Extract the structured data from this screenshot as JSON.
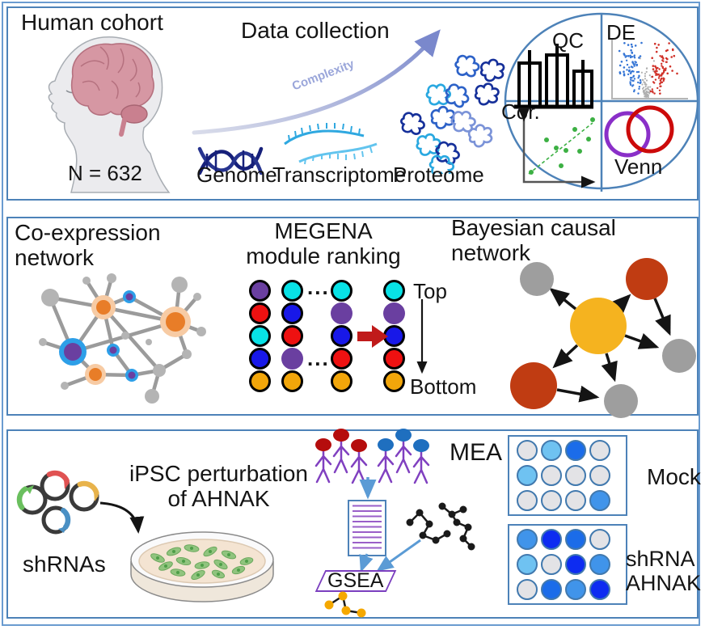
{
  "figure": {
    "panel1": {
      "cohort_title": "Human cohort",
      "n_label": "N = 632",
      "collection_title": "Data collection",
      "complexity_label": "Complexity",
      "omics": [
        "Genome",
        "Transcriptome",
        "Proteome"
      ],
      "analyses": {
        "qc": "QC",
        "de": "DE",
        "cor": "Cor.",
        "venn": "Venn"
      }
    },
    "panel2": {
      "coexpression_title": "Co-expression\nnetwork",
      "megena_title": "MEGENA\nmodule ranking",
      "ellipsis": "...",
      "top_label": "Top",
      "bottom_label": "Bottom",
      "bayesian_title": "Bayesian causal\nnetwork"
    },
    "panel3": {
      "shrnas_label": "shRNAs",
      "ipsc_title": "iPSC perturbation\nof AHNAK",
      "gsea_label": "GSEA",
      "mea_label": "MEA",
      "mock_label": "Mock",
      "shrna_ahnak_label": "shRNA\nAHNAK"
    }
  },
  "megena": {
    "palette": {
      "purple": "#6a3fa0",
      "red": "#ee1111",
      "cyan": "#08e2e6",
      "blue": "#1818e8",
      "gold": "#f2a60a"
    },
    "columns": [
      [
        {
          "c": "purple",
          "o": 1
        },
        {
          "c": "red",
          "o": 1
        },
        {
          "c": "cyan",
          "o": 1
        },
        {
          "c": "blue",
          "o": 1
        },
        {
          "c": "gold",
          "o": 1
        }
      ],
      [
        {
          "c": "cyan",
          "o": 1
        },
        {
          "c": "blue",
          "o": 1
        },
        {
          "c": "red",
          "o": 1
        },
        {
          "c": "purple",
          "o": 0
        },
        {
          "c": "gold",
          "o": 1
        }
      ],
      [
        {
          "c": "cyan",
          "o": 1
        },
        {
          "c": "purple",
          "o": 0
        },
        {
          "c": "blue",
          "o": 1
        },
        {
          "c": "red",
          "o": 1
        },
        {
          "c": "gold",
          "o": 1
        }
      ],
      [
        {
          "c": "cyan",
          "o": 1
        },
        {
          "c": "purple",
          "o": 0
        },
        {
          "c": "blue",
          "o": 1
        },
        {
          "c": "red",
          "o": 1
        },
        {
          "c": "gold",
          "o": 1
        }
      ]
    ]
  },
  "mea": {
    "well_palette": {
      "gray": "#e3e3e6",
      "lightblue": "#6fc2f1",
      "blue": "#4094ea",
      "strongblue": "#1b6ce9",
      "deepblue": "#0d2cf1"
    },
    "plates": {
      "mock": [
        [
          "gray",
          "lightblue",
          "strongblue",
          "gray"
        ],
        [
          "lightblue",
          "gray",
          "gray",
          "gray"
        ],
        [
          "gray",
          "gray",
          "gray",
          "blue"
        ]
      ],
      "shrna_ahnak": [
        [
          "blue",
          "deepblue",
          "strongblue",
          "gray"
        ],
        [
          "lightblue",
          "gray",
          "deepblue",
          "blue"
        ],
        [
          "gray",
          "strongblue",
          "blue",
          "deepblue"
        ]
      ]
    }
  },
  "colors": {
    "panel_border": "#4d82b8",
    "venn_purple": "#8a2fc8",
    "venn_red": "#cc0a0a",
    "volcano_blue": "#3575d5",
    "volcano_red": "#d03028",
    "cor_green": "#3cb043",
    "bayes_yellow": "#f5b31f",
    "bayes_red": "#c03c12",
    "bayes_gray": "#9e9e9e",
    "hub_orange": "#e87d28",
    "hub_halo": "#f7cba4",
    "hub_blue": "#2d9fe8",
    "hub_purple": "#6a3fa0",
    "arrow_blue": "#5b9bd5",
    "rank_arrow_red": "#c01a1a"
  }
}
